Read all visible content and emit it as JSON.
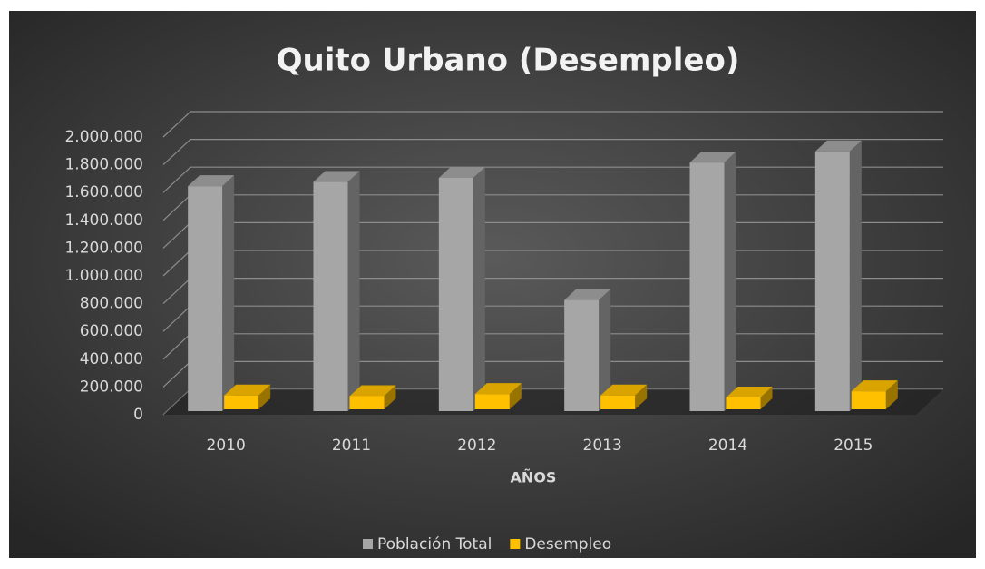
{
  "chart_data": {
    "type": "bar3d",
    "title": "Quito Urbano  (Desempleo)",
    "x_label": "AÑOS",
    "categories": [
      "2010",
      "2011",
      "2012",
      "2013",
      "2014",
      "2015"
    ],
    "series": [
      {
        "name": "Población Total",
        "color": "#a6a6a6",
        "values": [
          1620000,
          1650000,
          1680000,
          800000,
          1790000,
          1870000
        ]
      },
      {
        "name": "Desempleo",
        "color": "#ffc000",
        "values": [
          100000,
          95000,
          110000,
          100000,
          85000,
          130000
        ]
      }
    ],
    "ylim": [
      0,
      2000000
    ],
    "yticks": [
      0,
      {
        "value": 200000,
        "label": "200.000"
      },
      {
        "value": 400000,
        "label": "400.000"
      },
      {
        "value": 600000,
        "label": "600.000"
      },
      {
        "value": 800000,
        "label": "800.000"
      },
      {
        "value": 1000000,
        "label": "1.000.000"
      },
      {
        "value": 1200000,
        "label": "1.200.000"
      },
      {
        "value": 1400000,
        "label": "1.400.000"
      },
      {
        "value": 1600000,
        "label": "1.600.000"
      },
      {
        "value": 1800000,
        "label": "1.800.000"
      },
      {
        "value": 2000000,
        "label": "2.000.000"
      }
    ],
    "grid": true,
    "legend": "bottom"
  }
}
